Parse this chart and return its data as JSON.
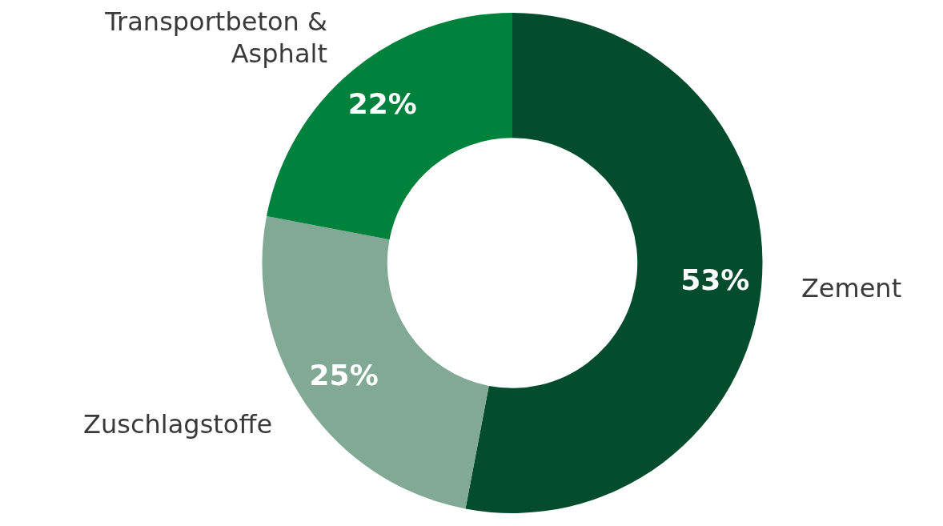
{
  "chart_data": {
    "type": "donut",
    "categories": [
      "Zement",
      "Zuschlagstoffe",
      "Transportbeton & Asphalt"
    ],
    "values": [
      53,
      25,
      22
    ],
    "colors": [
      "#034d2e",
      "#82a996",
      "#00823d"
    ],
    "value_labels": [
      "53%",
      "25%",
      "22%"
    ],
    "legend": false
  }
}
